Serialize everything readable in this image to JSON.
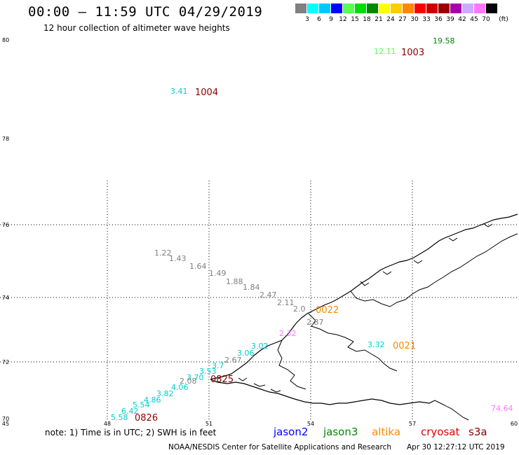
{
  "header": {
    "title": "00:00 – 11:59 UTC 04/29/2019",
    "subtitle": "12 hour collection of altimeter wave heights"
  },
  "legend": {
    "unit": "(ft)",
    "bins": [
      {
        "label": "3",
        "color": "#808080"
      },
      {
        "label": "6",
        "color": "#00ffff"
      },
      {
        "label": "9",
        "color": "#00c8ff"
      },
      {
        "label": "12",
        "color": "#0000ff"
      },
      {
        "label": "15",
        "color": "#55ff55"
      },
      {
        "label": "18",
        "color": "#00dd00"
      },
      {
        "label": "21",
        "color": "#008800"
      },
      {
        "label": "24",
        "color": "#ffff00"
      },
      {
        "label": "27",
        "color": "#ffcc00"
      },
      {
        "label": "30",
        "color": "#ff8800"
      },
      {
        "label": "33",
        "color": "#ff0000"
      },
      {
        "label": "36",
        "color": "#cc0000"
      },
      {
        "label": "39",
        "color": "#990000"
      },
      {
        "label": "42",
        "color": "#aa00aa"
      },
      {
        "label": "45",
        "color": "#ccaaff"
      },
      {
        "label": "70",
        "color": "#ff77ff"
      },
      {
        "label": "",
        "color": "#000000"
      }
    ]
  },
  "axes": {
    "lat_labels": [
      "80",
      "78",
      "76",
      "74",
      "72",
      "70"
    ],
    "lon_labels": [
      "45",
      "48",
      "51",
      "54",
      "57",
      "60"
    ]
  },
  "observations": [
    {
      "v": "19.58",
      "color": "#008800"
    },
    {
      "v": "12.11",
      "color": "#55ff55"
    },
    {
      "v": "3.41",
      "color": "#00cccc"
    },
    {
      "v": "1.22",
      "color": "#808080"
    },
    {
      "v": "1.43",
      "color": "#808080"
    },
    {
      "v": "1.64",
      "color": "#808080"
    },
    {
      "v": "1.49",
      "color": "#808080"
    },
    {
      "v": "1.88",
      "color": "#808080"
    },
    {
      "v": "1.84",
      "color": "#808080"
    },
    {
      "v": "2.47",
      "color": "#808080"
    },
    {
      "v": "2.11",
      "color": "#808080"
    },
    {
      "v": "2.0",
      "color": "#808080"
    },
    {
      "v": "2.87",
      "color": "#808080"
    },
    {
      "v": "2.32",
      "color": "#ff77ff"
    },
    {
      "v": "3.32",
      "color": "#00cccc"
    },
    {
      "v": "3.02",
      "color": "#00cccc"
    },
    {
      "v": "3.06",
      "color": "#00cccc"
    },
    {
      "v": "2.67",
      "color": "#808080"
    },
    {
      "v": "3.7",
      "color": "#00cccc"
    },
    {
      "v": "3.53",
      "color": "#00cccc"
    },
    {
      "v": "3.70",
      "color": "#00cccc"
    },
    {
      "v": "2.08",
      "color": "#808080"
    },
    {
      "v": "4.06",
      "color": "#00cccc"
    },
    {
      "v": "3.82",
      "color": "#00cccc"
    },
    {
      "v": "4.86",
      "color": "#00cccc"
    },
    {
      "v": "5.54",
      "color": "#00cccc"
    },
    {
      "v": "6.42",
      "color": "#00cccc"
    },
    {
      "v": "5.58",
      "color": "#00cccc"
    },
    {
      "v": "74.64",
      "color": "#ff77ff"
    }
  ],
  "pass_times": [
    {
      "t": "1003",
      "color": "#880000"
    },
    {
      "t": "1004",
      "color": "#880000"
    },
    {
      "t": "0022",
      "color": "#ff8800"
    },
    {
      "t": "0021",
      "color": "#ff8800"
    },
    {
      "t": "0825",
      "color": "#880000"
    },
    {
      "t": "0826",
      "color": "#880000"
    }
  ],
  "notes": {
    "note": "note: 1) Time is in UTC; 2) SWH is in feet",
    "satellites": [
      {
        "name": "jason2",
        "color": "#0000ff"
      },
      {
        "name": "jason3",
        "color": "#008800"
      },
      {
        "name": "altika",
        "color": "#ff8800"
      },
      {
        "name": "cryosat",
        "color": "#dd0000"
      },
      {
        "name": "s3a",
        "color": "#880000"
      }
    ]
  },
  "footer": {
    "credit": "NOAA/NESDIS Center for Satellite Applications and Research",
    "timestamp": "Apr 30 12:27:12 UTC 2019"
  }
}
